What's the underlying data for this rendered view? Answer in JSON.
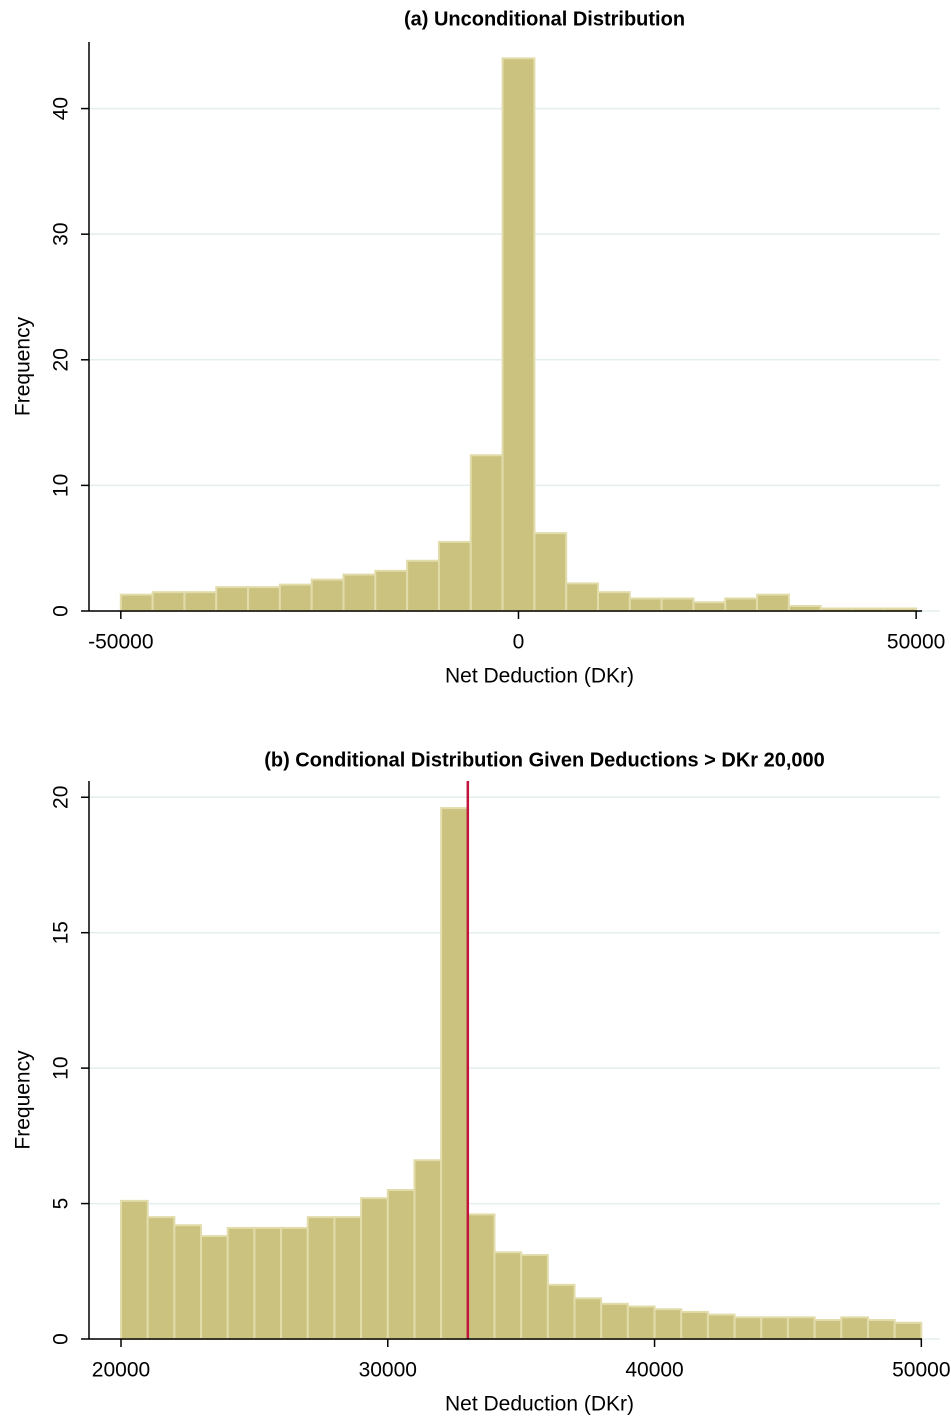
{
  "chart_data": [
    {
      "type": "histogram",
      "title": "(a) Unconditional Distribution",
      "xlabel": "Net Deduction (DKr)",
      "ylabel": "Frequency",
      "bins": [
        -50000,
        -46000,
        -42000,
        -38000,
        -34000,
        -30000,
        -26000,
        -22000,
        -18000,
        -14000,
        -10000,
        -6000,
        -2000,
        2000,
        6000,
        10000,
        14000,
        18000,
        22000,
        26000,
        30000,
        34000,
        38000,
        42000,
        46000,
        50000
      ],
      "values": [
        1.3,
        1.5,
        1.5,
        1.9,
        1.9,
        2.1,
        2.5,
        2.9,
        3.2,
        4.0,
        5.5,
        12.4,
        44.0,
        6.2,
        2.2,
        1.5,
        1.0,
        1.0,
        0.7,
        1.0,
        1.3,
        0.4,
        0.2,
        0.2,
        0.2
      ],
      "color": "#cbc27f",
      "xlim": [
        -54000,
        53000
      ],
      "ylim": [
        0,
        45.3
      ],
      "xticks": [
        -50000,
        0,
        50000
      ],
      "yticks": [
        0,
        10,
        20,
        30,
        40
      ],
      "grid": true
    },
    {
      "type": "histogram",
      "title": "(b) Conditional Distribution Given Deductions > DKr 20,000",
      "xlabel": "Net Deduction (DKr)",
      "ylabel": "Frequency",
      "bins": [
        20000,
        21000,
        22000,
        23000,
        24000,
        25000,
        26000,
        27000,
        28000,
        29000,
        30000,
        31000,
        32000,
        33000,
        34000,
        35000,
        36000,
        37000,
        38000,
        39000,
        40000,
        41000,
        42000,
        43000,
        44000,
        45000,
        46000,
        47000,
        48000,
        49000,
        50000
      ],
      "values": [
        5.1,
        4.5,
        4.2,
        3.8,
        4.1,
        4.1,
        4.1,
        4.5,
        4.5,
        5.2,
        5.5,
        6.6,
        19.6,
        4.6,
        3.2,
        3.1,
        2.0,
        1.5,
        1.3,
        1.2,
        1.1,
        1.0,
        0.9,
        0.8,
        0.8,
        0.8,
        0.7,
        0.8,
        0.7,
        0.6
      ],
      "color": "#cbc27f",
      "xlim": [
        18800,
        50700
      ],
      "ylim": [
        0,
        20.6
      ],
      "xticks": [
        20000,
        30000,
        40000,
        50000
      ],
      "yticks": [
        0,
        5,
        10,
        15,
        20
      ],
      "grid": true,
      "vline": 33000,
      "vline_color": "#c0143c"
    }
  ]
}
